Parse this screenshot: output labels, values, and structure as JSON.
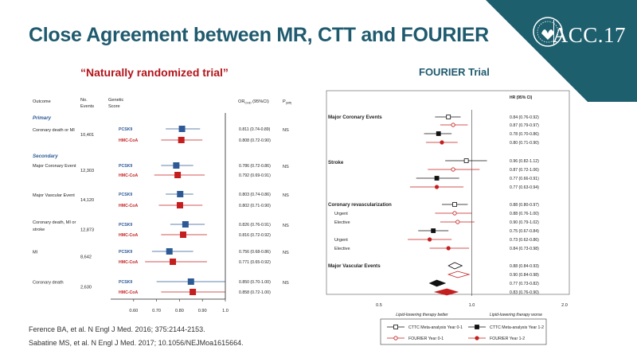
{
  "slide": {
    "title": "Close Agreement between MR, CTT and FOURIER",
    "brand": "ACC.17",
    "left_subtitle": "“Naturally randomized trial”",
    "right_subtitle": "FOURIER Trial",
    "references": [
      "Ference BA, et al. N Engl J Med. 2016; 375:2144-2153.",
      "Sabatine MS, et al. N Engl J Med. 2017; 10.1056/NEJMoa1615664."
    ]
  },
  "left_table": {
    "headers": {
      "outcome": "Outcome",
      "events_1": "No.",
      "events_2": "Events",
      "genetic_1": "Genetic",
      "genetic_2": "Score",
      "or": "OR",
      "or_sub": "CHD",
      "or_ci": "(95%CI)",
      "p": "P",
      "p_sub": "(diff)"
    },
    "section_primary": "Primary",
    "section_secondary": "Secondary",
    "rows": [
      {
        "outcome": [
          "Coronary death or MI"
        ],
        "events": "10,401",
        "p": "NS",
        "lines": [
          {
            "score": "PCSK9",
            "or": "0.811 (0.74-0.89)"
          },
          {
            "score": "HMC-CoA",
            "or": "0.808 (0.72-0.90)"
          }
        ]
      },
      {
        "outcome": [
          "Major Coronary Event"
        ],
        "events": "12,303",
        "p": "NS",
        "lines": [
          {
            "score": "PCSK9",
            "or": "0.786 (0.72-0.86)"
          },
          {
            "score": "HMC-CoA",
            "or": "0.792 (0.69-0.91)"
          }
        ]
      },
      {
        "outcome": [
          "Major Vascular Event"
        ],
        "events": "14,120",
        "p": "NS",
        "lines": [
          {
            "score": "PCSK9",
            "or": "0.803 (0.74-0.86)"
          },
          {
            "score": "HMC-CoA",
            "or": "0.802 (0.71-0.90)"
          }
        ]
      },
      {
        "outcome": [
          "Coronary death, MI or",
          "stroke"
        ],
        "events": "12,873",
        "p": "NS",
        "lines": [
          {
            "score": "PCSK9",
            "or": "0.826 (0.76-0.91)"
          },
          {
            "score": "HMC-CoA",
            "or": "0.816 (0.72-0.92)"
          }
        ]
      },
      {
        "outcome": [
          "MI"
        ],
        "events": "8,642",
        "p": "NS",
        "lines": [
          {
            "score": "PCSK9",
            "or": "0.756 (0.68-0.86)"
          },
          {
            "score": "HMC-CoA",
            "or": "0.771 (0.65-0.92)"
          }
        ]
      },
      {
        "outcome": [
          "Coronary death"
        ],
        "events": "2,630",
        "p": "NS",
        "lines": [
          {
            "score": "PCSK9",
            "or": "0.850 (0.70-1.00)"
          },
          {
            "score": "HMC-CoA",
            "or": "0.858 (0.72-1.00)"
          }
        ]
      }
    ]
  },
  "chart_data": [
    {
      "type": "scatter",
      "title": "",
      "xlim": [
        0.5,
        1.0
      ],
      "xticks": [
        "0.60",
        "0.70",
        "0.80",
        "0.90",
        "1.0"
      ],
      "xtick_values": [
        0.6,
        0.7,
        0.8,
        0.9,
        1.0
      ],
      "series": [
        {
          "name": "PCSK9",
          "color": "#2d5a96",
          "points": [
            {
              "y": "Coronary death or MI",
              "x": 0.811,
              "lo": 0.74,
              "hi": 0.89
            },
            {
              "y": "Major Coronary Event",
              "x": 0.786,
              "lo": 0.72,
              "hi": 0.86
            },
            {
              "y": "Major Vascular Event",
              "x": 0.803,
              "lo": 0.74,
              "hi": 0.86
            },
            {
              "y": "Coronary death, MI or stroke",
              "x": 0.826,
              "lo": 0.76,
              "hi": 0.91
            },
            {
              "y": "MI",
              "x": 0.756,
              "lo": 0.68,
              "hi": 0.86
            },
            {
              "y": "Coronary death",
              "x": 0.85,
              "lo": 0.7,
              "hi": 1.0
            }
          ]
        },
        {
          "name": "HMC-CoA",
          "color": "#c41e1e",
          "points": [
            {
              "y": "Coronary death or MI",
              "x": 0.808,
              "lo": 0.72,
              "hi": 0.9
            },
            {
              "y": "Major Coronary Event",
              "x": 0.792,
              "lo": 0.69,
              "hi": 0.91
            },
            {
              "y": "Major Vascular Event",
              "x": 0.802,
              "lo": 0.71,
              "hi": 0.9
            },
            {
              "y": "Coronary death, MI or stroke",
              "x": 0.816,
              "lo": 0.72,
              "hi": 0.92
            },
            {
              "y": "MI",
              "x": 0.771,
              "lo": 0.65,
              "hi": 0.92
            },
            {
              "y": "Coronary death",
              "x": 0.858,
              "lo": 0.72,
              "hi": 1.0
            }
          ]
        }
      ]
    },
    {
      "type": "scatter",
      "title": "",
      "header": "HR (95% CI)",
      "xlim": [
        0.5,
        2.0
      ],
      "xticks": [
        "0.5",
        "1.0",
        "2.0"
      ],
      "xtick_values": [
        0.5,
        1.0,
        2.0
      ],
      "log_x": true,
      "xlabel_left": "Lipid-lowering therapy better",
      "xlabel_right": "Lipid-lowering therapy worse",
      "groups": [
        "Major Coronary Events",
        "Stroke",
        "Coronary revascularization",
        "Major Vascular Events"
      ],
      "rows": [
        {
          "group": "Major Coronary Events",
          "label": "",
          "series": "CTTC Meta-analysis Year 0-1",
          "hr": 0.84,
          "lo": 0.76,
          "hi": 0.92,
          "text": "0.84 (0.76-0.92)"
        },
        {
          "group": "Major Coronary Events",
          "label": "",
          "series": "FOURIER Year 0-1",
          "hr": 0.87,
          "lo": 0.79,
          "hi": 0.97,
          "text": "0.87 (0.79-0.97)"
        },
        {
          "group": "Major Coronary Events",
          "label": "",
          "series": "CTTC Meta-analysis Year 1-2",
          "hr": 0.78,
          "lo": 0.7,
          "hi": 0.86,
          "text": "0.78 (0.70-0.86)"
        },
        {
          "group": "Major Coronary Events",
          "label": "",
          "series": "FOURIER Year 1-2",
          "hr": 0.8,
          "lo": 0.71,
          "hi": 0.9,
          "text": "0.80 (0.71-0.90)"
        },
        {
          "group": "Stroke",
          "label": "",
          "series": "CTTC Meta-analysis Year 0-1",
          "hr": 0.96,
          "lo": 0.82,
          "hi": 1.12,
          "text": "0.96 (0.82-1.12)"
        },
        {
          "group": "Stroke",
          "label": "",
          "series": "FOURIER Year 0-1",
          "hr": 0.87,
          "lo": 0.72,
          "hi": 1.06,
          "text": "0.87 (0.72-1.06)"
        },
        {
          "group": "Stroke",
          "label": "",
          "series": "CTTC Meta-analysis Year 1-2",
          "hr": 0.77,
          "lo": 0.66,
          "hi": 0.91,
          "text": "0.77 (0.66-0.91)"
        },
        {
          "group": "Stroke",
          "label": "",
          "series": "FOURIER Year 1-2",
          "hr": 0.77,
          "lo": 0.63,
          "hi": 0.94,
          "text": "0.77 (0.63-0.94)"
        },
        {
          "group": "Coronary revascularization",
          "label": "",
          "series": "CTTC Meta-analysis Year 0-1",
          "hr": 0.88,
          "lo": 0.8,
          "hi": 0.97,
          "text": "0.88 (0.80-0.97)"
        },
        {
          "group": "Coronary revascularization",
          "label": "Urgent",
          "series": "FOURIER Year 0-1",
          "hr": 0.88,
          "lo": 0.76,
          "hi": 1.0,
          "text": "0.88 (0.76-1.00)"
        },
        {
          "group": "Coronary revascularization",
          "label": "Elective",
          "series": "FOURIER Year 0-1",
          "hr": 0.9,
          "lo": 0.79,
          "hi": 1.02,
          "text": "0.90 (0.79-1.02)"
        },
        {
          "group": "Coronary revascularization",
          "label": "",
          "series": "CTTC Meta-analysis Year 1-2",
          "hr": 0.75,
          "lo": 0.67,
          "hi": 0.84,
          "text": "0.75 (0.67-0.84)"
        },
        {
          "group": "Coronary revascularization",
          "label": "Urgent",
          "series": "FOURIER Year 1-2",
          "hr": 0.73,
          "lo": 0.62,
          "hi": 0.86,
          "text": "0.73 (0.62-0.86)"
        },
        {
          "group": "Coronary revascularization",
          "label": "Elective",
          "series": "FOURIER Year 1-2",
          "hr": 0.84,
          "lo": 0.73,
          "hi": 0.98,
          "text": "0.84 (0.73-0.98)"
        },
        {
          "group": "Major Vascular Events",
          "label": "",
          "series": "CTTC Meta-analysis Year 0-1",
          "hr": 0.88,
          "lo": 0.84,
          "hi": 0.93,
          "text": "0.88 (0.84-0.93)",
          "diamond": true
        },
        {
          "group": "Major Vascular Events",
          "label": "",
          "series": "FOURIER Year 0-1",
          "hr": 0.9,
          "lo": 0.84,
          "hi": 0.98,
          "text": "0.90 (0.84-0.98)",
          "diamond": true
        },
        {
          "group": "Major Vascular Events",
          "label": "",
          "series": "CTTC Meta-analysis Year 1-2",
          "hr": 0.77,
          "lo": 0.73,
          "hi": 0.82,
          "text": "0.77 (0.73-0.82)",
          "diamond": true
        },
        {
          "group": "Major Vascular Events",
          "label": "",
          "series": "FOURIER Year 1-2",
          "hr": 0.83,
          "lo": 0.76,
          "hi": 0.9,
          "text": "0.83 (0.76-0.90)",
          "diamond": true
        }
      ],
      "legend": [
        {
          "name": "CTTC Meta-analysis Year 0-1",
          "color": "#111111",
          "filled": false,
          "marker": "square"
        },
        {
          "name": "CTTC Meta-analysis Year 1-2",
          "color": "#111111",
          "filled": true,
          "marker": "square"
        },
        {
          "name": "FOURIER Year 0-1",
          "color": "#c41e1e",
          "filled": false,
          "marker": "circle"
        },
        {
          "name": "FOURIER Year 1-2",
          "color": "#c41e1e",
          "filled": true,
          "marker": "circle"
        }
      ]
    }
  ],
  "colors": {
    "title": "#1f5a6e",
    "brand_bg": "#1e5f6e",
    "subtitle_left": "#b3151b",
    "pcsk9": "#2d5a96",
    "hmc": "#c41e1e",
    "cttc": "#111111",
    "fourier": "#c41e1e"
  }
}
